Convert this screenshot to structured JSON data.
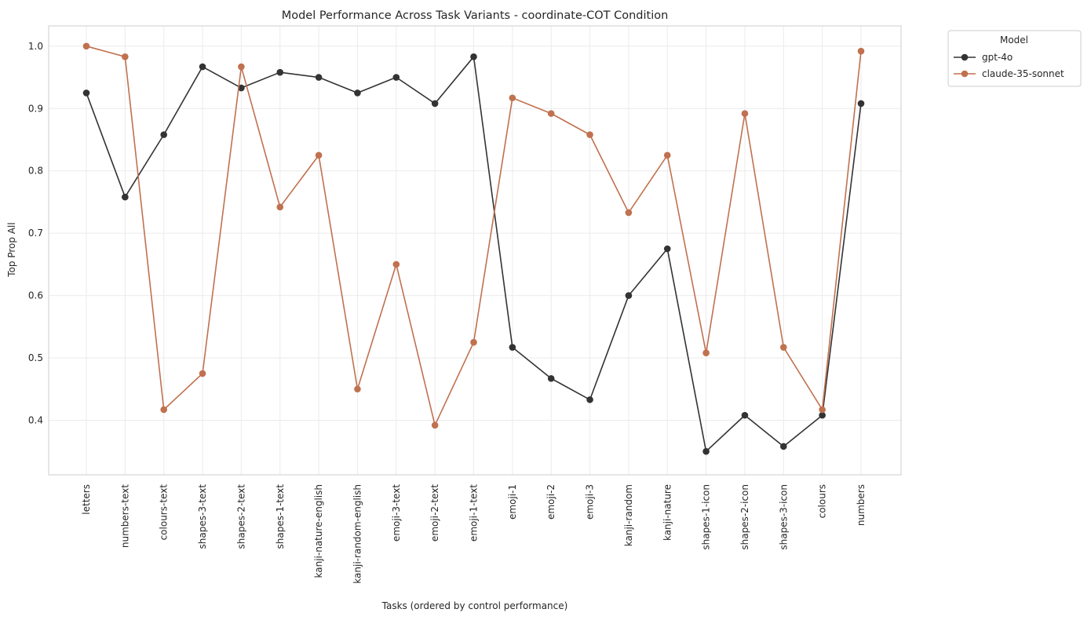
{
  "chart_data": {
    "type": "line",
    "title": "Model Performance Across Task Variants - coordinate-COT Condition",
    "xlabel": "Tasks (ordered by control performance)",
    "ylabel": "Top Prop All",
    "ylim": [
      0.3125,
      1.0325
    ],
    "yticks": [
      "0.4",
      "0.5",
      "0.6",
      "0.7",
      "0.8",
      "0.9",
      "1.0"
    ],
    "grid": true,
    "legend": {
      "title": "Model",
      "placement": "outside-top-right"
    },
    "categories": [
      "letters",
      "numbers-text",
      "colours-text",
      "shapes-3-text",
      "shapes-2-text",
      "shapes-1-text",
      "kanji-nature-english",
      "kanji-random-english",
      "emoji-3-text",
      "emoji-2-text",
      "emoji-1-text",
      "emoji-1",
      "emoji-2",
      "emoji-3",
      "kanji-random",
      "kanji-nature",
      "shapes-1-icon",
      "shapes-2-icon",
      "shapes-3-icon",
      "colours",
      "numbers"
    ],
    "series": [
      {
        "name": "gpt-4o",
        "color": "#333333",
        "values": [
          0.925,
          0.758,
          0.858,
          0.967,
          0.933,
          0.958,
          0.95,
          0.925,
          0.95,
          0.908,
          0.983,
          0.517,
          0.467,
          0.433,
          0.6,
          0.675,
          0.35,
          0.408,
          0.358,
          0.408,
          0.908
        ]
      },
      {
        "name": "claude-35-sonnet",
        "color": "#C0714F",
        "values": [
          1.0,
          0.983,
          0.417,
          0.475,
          0.967,
          0.742,
          0.825,
          0.45,
          0.65,
          0.392,
          0.525,
          0.917,
          0.892,
          0.858,
          0.733,
          0.825,
          0.508,
          0.892,
          0.517,
          0.417,
          0.992
        ]
      }
    ]
  }
}
